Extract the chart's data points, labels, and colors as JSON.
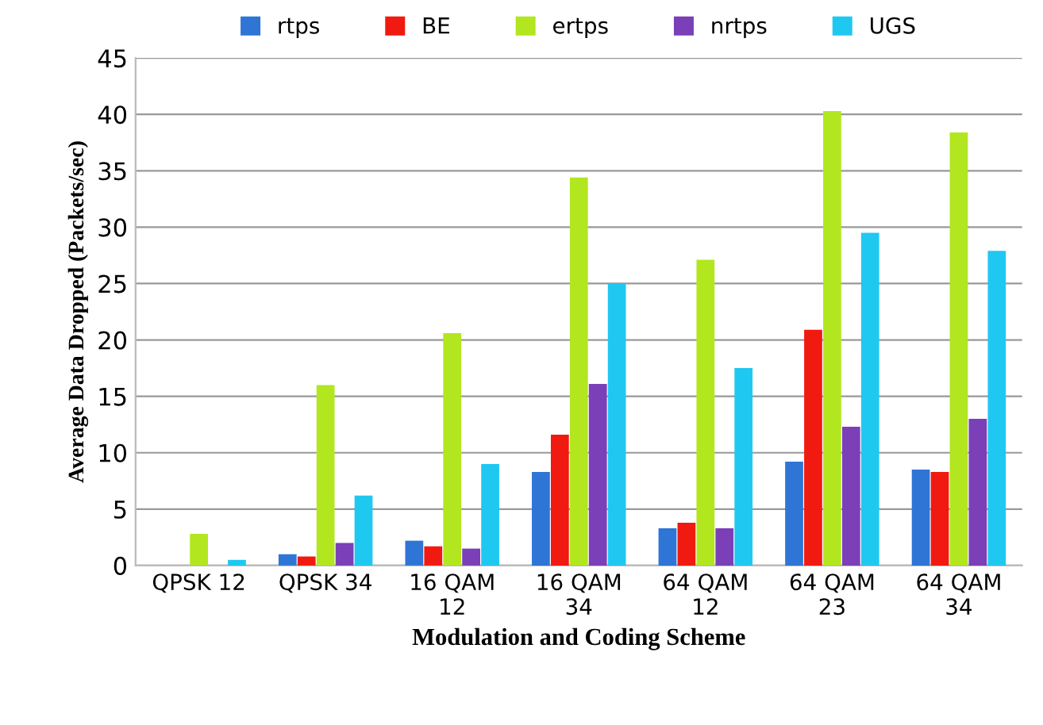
{
  "chart_data": {
    "type": "bar",
    "xlabel": "Modulation and Coding Scheme",
    "ylabel": "Average Data Dropped (Packets/sec)",
    "categories": [
      "QPSK 12",
      "QPSK 34",
      "16 QAM\n12",
      "16 QAM\n34",
      "64 QAM\n12",
      "64 QAM\n23",
      "64 QAM\n34"
    ],
    "series": [
      {
        "name": "rtps",
        "color": "#2e75d6",
        "values": [
          0,
          1.0,
          2.2,
          8.3,
          3.3,
          9.2,
          8.5
        ]
      },
      {
        "name": "BE",
        "color": "#f01a10",
        "values": [
          0,
          0.8,
          1.7,
          11.6,
          3.8,
          20.9,
          8.3
        ]
      },
      {
        "name": "ertps",
        "color": "#b2e61e",
        "values": [
          2.8,
          16,
          20.6,
          34.4,
          27.1,
          40.3,
          38.4
        ]
      },
      {
        "name": "nrtps",
        "color": "#7b3fb8",
        "values": [
          0,
          2,
          1.5,
          16.1,
          3.3,
          12.3,
          13
        ]
      },
      {
        "name": "UGS",
        "color": "#1fc8f0",
        "values": [
          0.5,
          6.2,
          9,
          25,
          17.5,
          29.5,
          27.9
        ]
      }
    ],
    "ylim": [
      0,
      45
    ],
    "yticks": [
      0,
      5,
      10,
      15,
      20,
      25,
      30,
      35,
      40,
      45
    ],
    "grid": "y",
    "legend": "top"
  }
}
